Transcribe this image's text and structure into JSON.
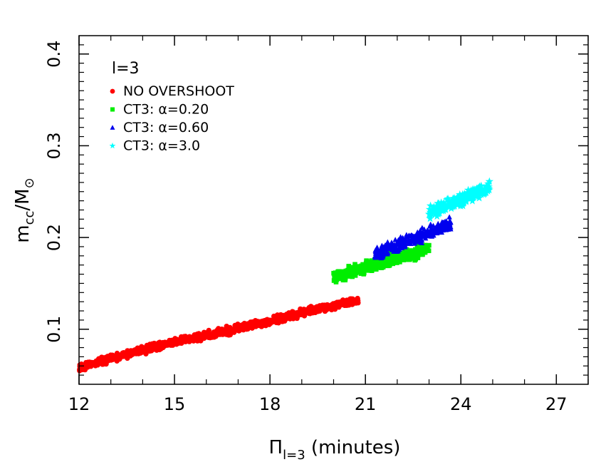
{
  "chart_data": {
    "type": "scatter",
    "title": "",
    "panel_label": "l=3",
    "xlabel": {
      "main": "Π",
      "sub": "l=3",
      "suffix": " (minutes)"
    },
    "ylabel": {
      "main": "m",
      "sub": "cc",
      "mid": "/M",
      "sub2": "⊙"
    },
    "xlim": [
      12,
      28
    ],
    "ylim": [
      0.04,
      0.42
    ],
    "xticks": [
      12,
      15,
      18,
      21,
      24,
      27
    ],
    "xtick_labels": [
      "12",
      "15",
      "18",
      "21",
      "24",
      "27"
    ],
    "yticks": [
      0.1,
      0.2,
      0.3,
      0.4
    ],
    "ytick_labels": [
      "0.1",
      "0.2",
      "0.3",
      "0.4"
    ],
    "grid": false,
    "legend_position": "top-left",
    "series": [
      {
        "name": "NO OVERSHOOT",
        "color": "#ff0000",
        "marker": "circle",
        "trend": [
          [
            12.0,
            0.058
          ],
          [
            13.0,
            0.068
          ],
          [
            14.0,
            0.077
          ],
          [
            15.0,
            0.086
          ],
          [
            16.0,
            0.093
          ],
          [
            17.0,
            0.101
          ],
          [
            18.0,
            0.109
          ],
          [
            19.0,
            0.118
          ],
          [
            20.0,
            0.126
          ],
          [
            20.8,
            0.131
          ]
        ],
        "spread": 0.003,
        "count": 900
      },
      {
        "name": "CT3: α=0.20",
        "color": "#00ee00",
        "marker": "square",
        "trend": [
          [
            20.0,
            0.157
          ],
          [
            20.4,
            0.161
          ],
          [
            21.0,
            0.167
          ],
          [
            21.5,
            0.172
          ],
          [
            22.0,
            0.178
          ],
          [
            22.5,
            0.183
          ],
          [
            23.0,
            0.189
          ]
        ],
        "spread": 0.005,
        "count": 450
      },
      {
        "name": "CT3: α=0.60",
        "color": "#0000ee",
        "marker": "triangle",
        "trend": [
          [
            21.3,
            0.182
          ],
          [
            21.8,
            0.189
          ],
          [
            22.3,
            0.196
          ],
          [
            22.8,
            0.203
          ],
          [
            23.3,
            0.21
          ],
          [
            23.7,
            0.215
          ]
        ],
        "spread": 0.005,
        "count": 320
      },
      {
        "name": "CT3: α=3.0",
        "color": "#00ffff",
        "marker": "star",
        "trend": [
          [
            23.0,
            0.226
          ],
          [
            23.5,
            0.234
          ],
          [
            24.0,
            0.241
          ],
          [
            24.5,
            0.249
          ],
          [
            24.9,
            0.255
          ]
        ],
        "spread": 0.005,
        "count": 230
      }
    ]
  }
}
